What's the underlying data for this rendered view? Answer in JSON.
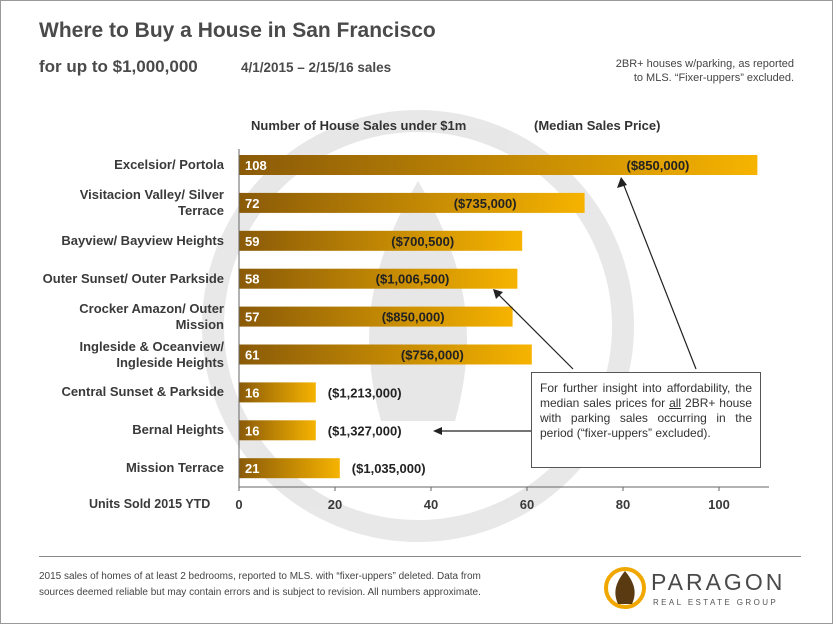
{
  "header": {
    "title": "Where to Buy a House in San Francisco",
    "subtitle": "for up to $1,000,000",
    "date_range": "4/1/2015 – 2/15/16 sales",
    "notes_line1": "2BR+ houses w/parking, as reported",
    "notes_line2": "to MLS. “Fixer-uppers” excluded."
  },
  "chart_data": {
    "type": "bar",
    "orientation": "horizontal",
    "series_header": "Number of House Sales under $1m",
    "price_header": "(Median Sales Price)",
    "xlabel": "Units Sold 2015 YTD",
    "xlim": [
      0,
      110
    ],
    "xticks": [
      0,
      20,
      40,
      60,
      80,
      100
    ],
    "grid": false,
    "categories": [
      [
        "Excelsior/ Portola"
      ],
      [
        "Visitacion Valley/ Silver",
        "Terrace"
      ],
      [
        "Bayview/ Bayview Heights"
      ],
      [
        "Outer Sunset/ Outer Parkside"
      ],
      [
        "Crocker Amazon/ Outer",
        "Mission"
      ],
      [
        "Ingleside & Oceanview/",
        "Ingleside Heights"
      ],
      [
        "Central Sunset  & Parkside"
      ],
      [
        "Bernal Heights"
      ],
      [
        "Mission Terrace"
      ]
    ],
    "values": [
      108,
      72,
      59,
      58,
      57,
      61,
      16,
      16,
      21
    ],
    "median_prices": [
      "($850,000)",
      "($735,000)",
      "($700,500)",
      "($1,006,500)",
      "($850,000)",
      "($756,000)",
      "($1,213,000)",
      "($1,327,000)",
      "($1,035,000)"
    ],
    "colors": {
      "bar_dark": "#8a5a08",
      "bar_light": "#f6b300",
      "label_color": "#ffffff"
    }
  },
  "callout": {
    "text_before": "For further insight into affordability, the median sales prices for ",
    "text_underlined": "all",
    "text_after": " 2BR+ house with parking sales occurring in the period (“fixer-uppers” excluded)."
  },
  "footer": {
    "line1": "2015 sales of homes of at least 2 bedrooms, reported to MLS.  with “fixer-uppers” deleted. Data from",
    "line2": "sources deemed reliable but may contain errors and is subject to revision. All numbers approximate."
  },
  "logo": {
    "name": "PARAGON",
    "tagline": "REAL ESTATE GROUP",
    "icon": "paragon-flame-icon",
    "colors": {
      "ring": "#f0a800",
      "flame": "#5a3a10"
    }
  }
}
